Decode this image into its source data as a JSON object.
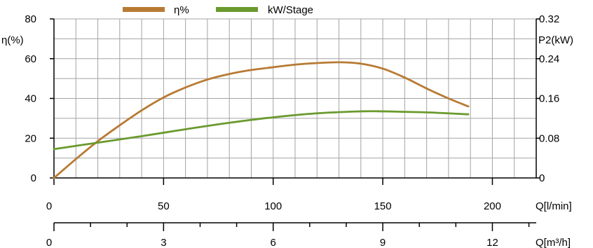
{
  "chart_data": {
    "type": "line",
    "legend": {
      "placement": "top",
      "entries": [
        {
          "label": "η%",
          "color": "#b87a33"
        },
        {
          "label": "kW/Stage",
          "color": "#6a9a2e"
        }
      ]
    },
    "grid": true,
    "x_axes": [
      {
        "label": "Q[l/min]",
        "range": [
          0,
          220
        ],
        "ticks": [
          "0",
          "50",
          "100",
          "150",
          "200"
        ],
        "tick_values": [
          0,
          50,
          100,
          150,
          200
        ]
      },
      {
        "label": "Q[m³/h]",
        "range": [
          0,
          13.2
        ],
        "ticks": [
          "0",
          "3",
          "6",
          "9",
          "12"
        ],
        "tick_values": [
          0,
          3,
          6,
          9,
          12
        ],
        "minor_step": 1
      }
    ],
    "y_axes": [
      {
        "label": "η(%)",
        "side": "left",
        "range": [
          0,
          80
        ],
        "ticks": [
          "0",
          "20",
          "40",
          "60",
          "80"
        ],
        "tick_values": [
          0,
          20,
          40,
          60,
          80
        ]
      },
      {
        "label": "P2(kW)",
        "side": "right",
        "range": [
          0,
          0.32
        ],
        "ticks": [
          "0",
          "0.08",
          "0.16",
          "0.24",
          "0.32"
        ],
        "tick_values": [
          0,
          0.08,
          0.16,
          0.24,
          0.32
        ]
      }
    ],
    "series": [
      {
        "name": "η%",
        "axis": "left",
        "color": "#b87a33",
        "x": [
          0,
          10,
          20,
          30,
          40,
          50,
          60,
          70,
          80,
          90,
          100,
          110,
          120,
          130,
          140,
          150,
          160,
          170,
          180,
          189
        ],
        "y": [
          0,
          9.5,
          18.5,
          26.5,
          34,
          40.5,
          45.5,
          49.5,
          52.3,
          54.3,
          55.7,
          57,
          57.8,
          58.2,
          57.5,
          55,
          50.5,
          45,
          40,
          36
        ]
      },
      {
        "name": "kW/Stage",
        "axis": "right",
        "color": "#6a9a2e",
        "x": [
          0,
          20,
          40,
          60,
          80,
          100,
          120,
          140,
          150,
          160,
          170,
          180,
          189
        ],
        "y": [
          0.058,
          0.071,
          0.084,
          0.098,
          0.111,
          0.122,
          0.13,
          0.134,
          0.134,
          0.133,
          0.132,
          0.13,
          0.128
        ]
      }
    ]
  }
}
